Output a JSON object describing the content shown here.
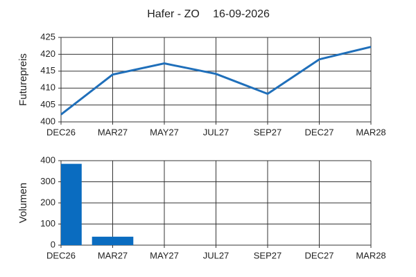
{
  "chart_data": [
    {
      "type": "line",
      "title": "Hafer - ZO",
      "subtitle": "16-09-2026",
      "y_label": "Futurepreis",
      "categories": [
        "DEC26",
        "MAR27",
        "MAY27",
        "JUL27",
        "SEP27",
        "DEC27",
        "MAR28"
      ],
      "values": [
        402.2,
        414,
        417.3,
        414.2,
        408.3,
        418.5,
        422.2
      ],
      "color": "#1f6fba",
      "ylim": [
        400,
        425
      ],
      "yticks": [
        400,
        405,
        410,
        415,
        420,
        425
      ],
      "grid": true
    },
    {
      "type": "bar",
      "y_label": "Volumen",
      "categories": [
        "DEC26",
        "MAR27",
        "MAY27",
        "JUL27",
        "SEP27",
        "DEC27",
        "MAR28"
      ],
      "values": [
        385,
        40,
        0,
        0,
        0,
        0,
        0
      ],
      "color": "#0a6cc0",
      "ylim": [
        0,
        400
      ],
      "yticks": [
        0,
        100,
        200,
        300,
        400
      ],
      "grid": true
    }
  ]
}
